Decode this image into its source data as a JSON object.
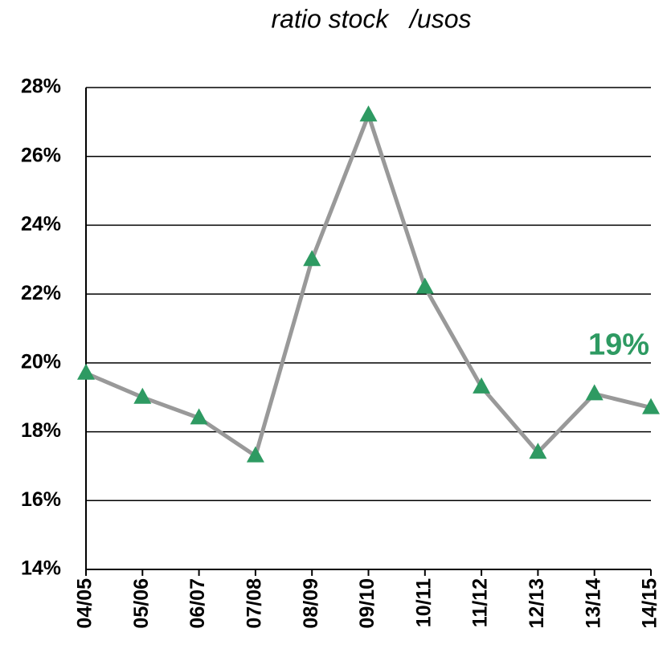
{
  "chart_data": {
    "type": "line",
    "title": "ratio stock   /usos",
    "categories": [
      "04/05",
      "05/06",
      "06/07",
      "07/08",
      "08/09",
      "09/10",
      "10/11",
      "11/12",
      "12/13",
      "13/14",
      "14/15"
    ],
    "series": [
      {
        "color": "#999999",
        "marker_color": "#2e9a62",
        "values": [
          19.7,
          19.0,
          18.4,
          17.3,
          23.0,
          27.2,
          22.2,
          19.3,
          17.4,
          19.1,
          18.7
        ]
      }
    ],
    "ylim": [
      14,
      28
    ],
    "yticks": [
      {
        "value": 14,
        "label": "14%"
      },
      {
        "value": 16,
        "label": "16%"
      },
      {
        "value": 18,
        "label": "18%"
      },
      {
        "value": 20,
        "label": "20%"
      },
      {
        "value": 22,
        "label": "22%"
      },
      {
        "value": 24,
        "label": "24%"
      },
      {
        "value": 26,
        "label": "26%"
      },
      {
        "value": 28,
        "label": "28%"
      }
    ],
    "grid": true,
    "annotations": [
      "19%"
    ]
  }
}
